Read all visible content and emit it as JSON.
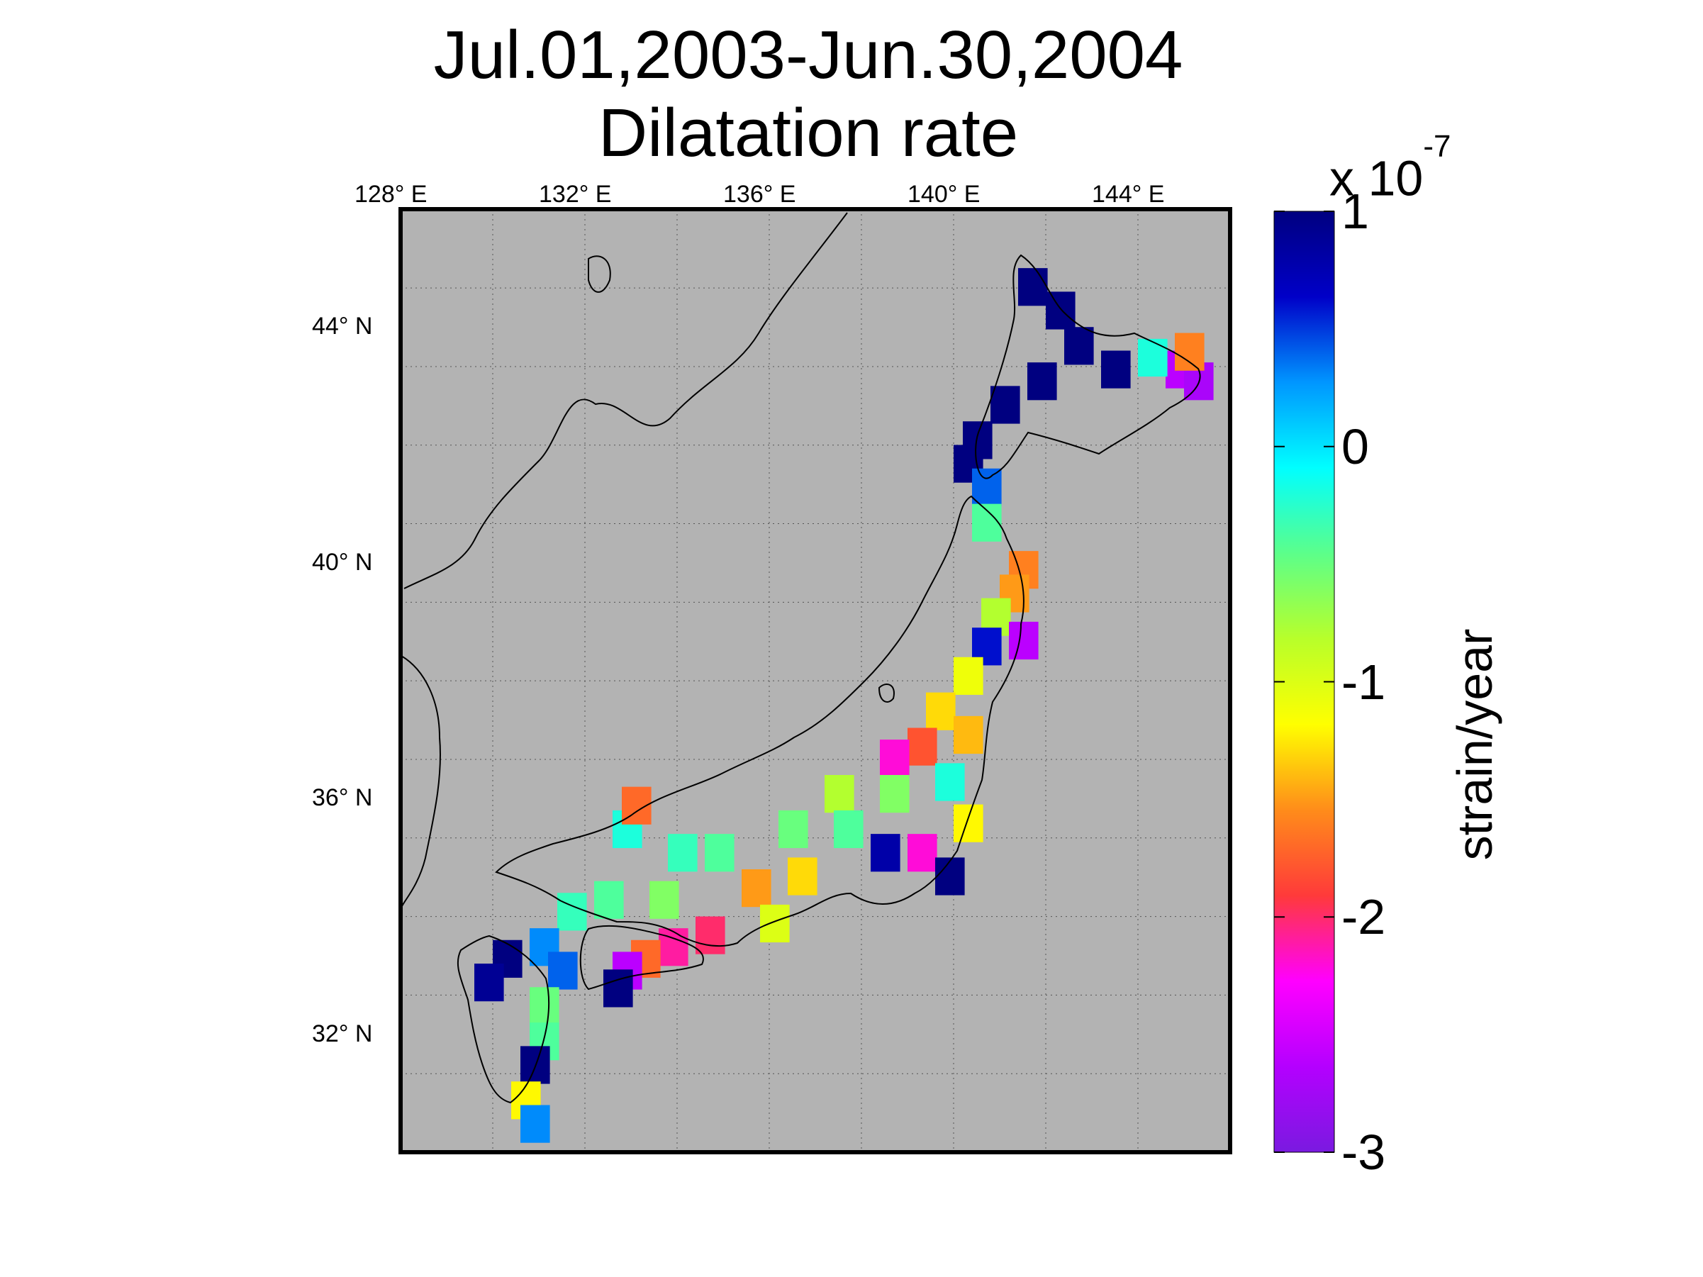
{
  "title": {
    "line1": "Jul.01,2003-Jun.30,2004",
    "line2": "Dilatation rate"
  },
  "map": {
    "lon_labels": [
      "128° E",
      "132° E",
      "136° E",
      "140° E",
      "144° E"
    ],
    "lon_values": [
      128,
      132,
      136,
      140,
      144
    ],
    "lat_labels": [
      "44° N",
      "40° N",
      "36° N",
      "32° N"
    ],
    "lat_values": [
      44,
      40,
      36,
      32
    ],
    "extent": {
      "lon": [
        128,
        146
      ],
      "lat": [
        30,
        46
      ]
    },
    "background_color": "#b3b3b3",
    "grid": "dotted"
  },
  "colorbar": {
    "exponent_label": "x 10",
    "exponent": "-7",
    "tick_labels": [
      "1",
      "0",
      "-1",
      "-2",
      "-3"
    ],
    "tick_values": [
      1,
      0,
      -1,
      -2,
      -3
    ],
    "range": [
      -3,
      1
    ],
    "unit_label": "strain/year",
    "colormap": [
      "#7a1ae0",
      "#b400ff",
      "#ff00ff",
      "#ff3a3a",
      "#ff8c1a",
      "#ffff00",
      "#b8ff2a",
      "#5cff8a",
      "#00ffff",
      "#0096ff",
      "#0000c8",
      "#000080"
    ]
  },
  "chart_data": {
    "type": "heatmap",
    "title": "Jul.01,2003-Jun.30,2004 Dilatation rate",
    "xlabel": "",
    "ylabel": "",
    "value_label": "strain/year",
    "value_scale": "x 10^-7",
    "xlim": [
      128,
      146
    ],
    "ylim": [
      30,
      46
    ],
    "clim": [
      -3,
      1
    ],
    "points": [
      {
        "lon": 141.6,
        "lat": 44.8,
        "value": 1
      },
      {
        "lon": 142.2,
        "lat": 44.4,
        "value": 1
      },
      {
        "lon": 142.6,
        "lat": 43.8,
        "value": 1
      },
      {
        "lon": 143.4,
        "lat": 43.4,
        "value": 1
      },
      {
        "lon": 141.8,
        "lat": 43.2,
        "value": 1
      },
      {
        "lon": 141.0,
        "lat": 42.8,
        "value": 1
      },
      {
        "lon": 140.4,
        "lat": 42.2,
        "value": 1
      },
      {
        "lon": 140.2,
        "lat": 41.8,
        "value": 1
      },
      {
        "lon": 144.8,
        "lat": 43.4,
        "value": -2.6
      },
      {
        "lon": 145.2,
        "lat": 43.2,
        "value": -2.7
      },
      {
        "lon": 145.0,
        "lat": 43.7,
        "value": -1.6
      },
      {
        "lon": 144.2,
        "lat": 43.6,
        "value": -0.2
      },
      {
        "lon": 140.6,
        "lat": 41.4,
        "value": 0.4
      },
      {
        "lon": 140.6,
        "lat": 40.8,
        "value": -0.4
      },
      {
        "lon": 141.4,
        "lat": 40.0,
        "value": -1.6
      },
      {
        "lon": 141.2,
        "lat": 39.6,
        "value": -1.5
      },
      {
        "lon": 140.8,
        "lat": 39.2,
        "value": -0.8
      },
      {
        "lon": 141.4,
        "lat": 38.8,
        "value": -2.6
      },
      {
        "lon": 140.6,
        "lat": 38.7,
        "value": 0.6
      },
      {
        "lon": 140.2,
        "lat": 38.2,
        "value": -1.1
      },
      {
        "lon": 139.6,
        "lat": 37.6,
        "value": -1.3
      },
      {
        "lon": 140.2,
        "lat": 37.2,
        "value": -1.4
      },
      {
        "lon": 139.2,
        "lat": 37.0,
        "value": -1.8
      },
      {
        "lon": 138.6,
        "lat": 36.8,
        "value": -2.2
      },
      {
        "lon": 139.8,
        "lat": 36.4,
        "value": -0.2
      },
      {
        "lon": 138.6,
        "lat": 36.2,
        "value": -0.6
      },
      {
        "lon": 137.4,
        "lat": 36.2,
        "value": -0.8
      },
      {
        "lon": 140.2,
        "lat": 35.7,
        "value": -1.2
      },
      {
        "lon": 139.2,
        "lat": 35.2,
        "value": -2.2
      },
      {
        "lon": 138.4,
        "lat": 35.2,
        "value": 0.8
      },
      {
        "lon": 139.8,
        "lat": 34.8,
        "value": 1
      },
      {
        "lon": 137.6,
        "lat": 35.6,
        "value": -0.4
      },
      {
        "lon": 136.4,
        "lat": 35.6,
        "value": -0.5
      },
      {
        "lon": 136.6,
        "lat": 34.8,
        "value": -1.3
      },
      {
        "lon": 135.6,
        "lat": 34.6,
        "value": -1.5
      },
      {
        "lon": 136.0,
        "lat": 34.0,
        "value": -1.0
      },
      {
        "lon": 134.8,
        "lat": 35.2,
        "value": -0.4
      },
      {
        "lon": 134.0,
        "lat": 35.2,
        "value": -0.3
      },
      {
        "lon": 134.6,
        "lat": 33.8,
        "value": -2.0
      },
      {
        "lon": 133.8,
        "lat": 33.6,
        "value": -2.1
      },
      {
        "lon": 133.2,
        "lat": 33.4,
        "value": -1.7
      },
      {
        "lon": 132.8,
        "lat": 33.2,
        "value": -2.6
      },
      {
        "lon": 132.6,
        "lat": 32.9,
        "value": 1
      },
      {
        "lon": 133.6,
        "lat": 34.4,
        "value": -0.6
      },
      {
        "lon": 132.4,
        "lat": 34.4,
        "value": -0.4
      },
      {
        "lon": 131.6,
        "lat": 34.2,
        "value": -0.3
      },
      {
        "lon": 131.0,
        "lat": 33.6,
        "value": 0.3
      },
      {
        "lon": 130.2,
        "lat": 33.4,
        "value": 1
      },
      {
        "lon": 129.8,
        "lat": 33.0,
        "value": 0.9
      },
      {
        "lon": 131.4,
        "lat": 33.2,
        "value": 0.4
      },
      {
        "lon": 131.0,
        "lat": 32.6,
        "value": -0.5
      },
      {
        "lon": 131.0,
        "lat": 32.0,
        "value": -0.4
      },
      {
        "lon": 130.8,
        "lat": 31.6,
        "value": 1
      },
      {
        "lon": 130.6,
        "lat": 31.0,
        "value": -1.2
      },
      {
        "lon": 130.8,
        "lat": 30.6,
        "value": 0.3
      },
      {
        "lon": 132.8,
        "lat": 35.6,
        "value": -0.2
      },
      {
        "lon": 133.0,
        "lat": 36.0,
        "value": -1.7
      }
    ]
  }
}
